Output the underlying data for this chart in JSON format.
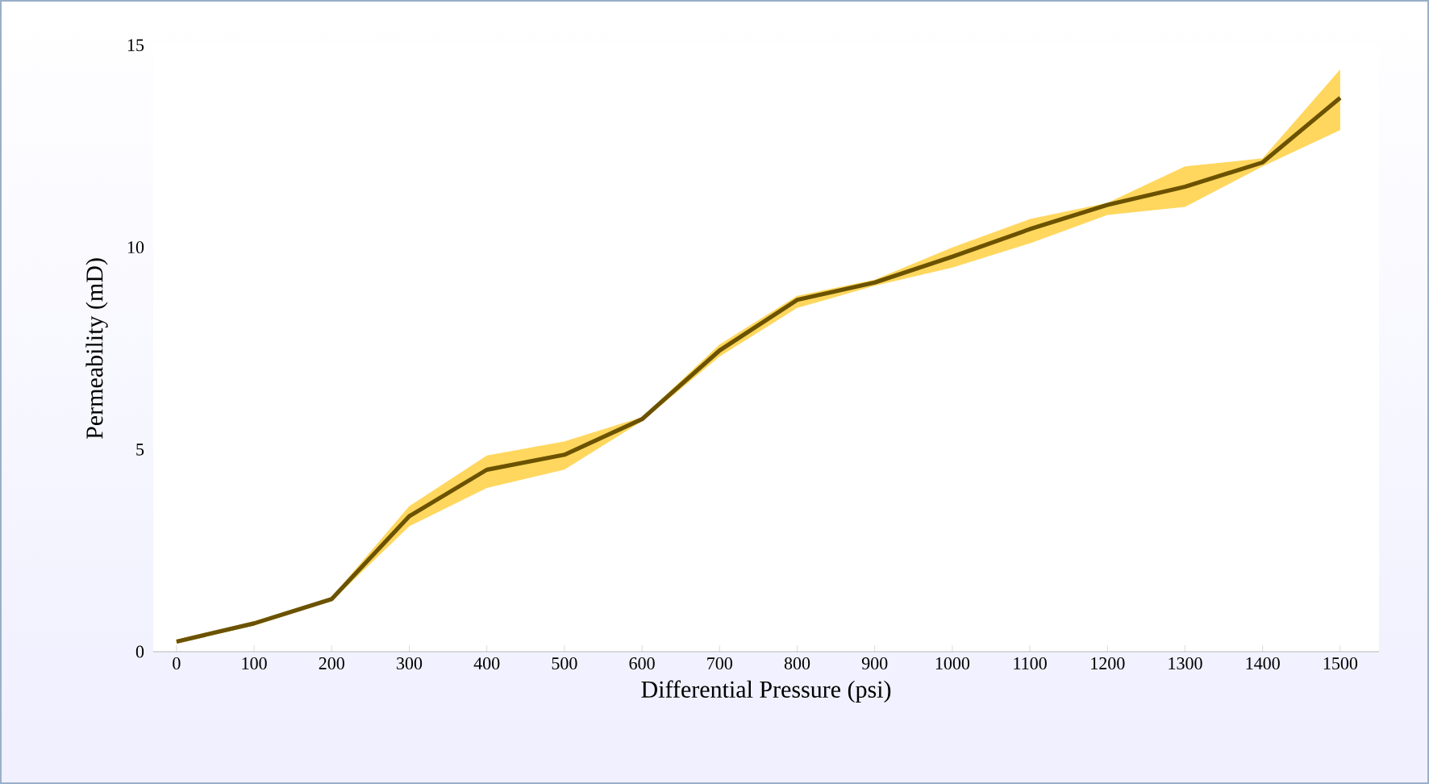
{
  "chart_data": {
    "type": "line",
    "xlabel": "Differential Pressure (psi)",
    "ylabel": "Permeability (mD)",
    "x": [
      0,
      100,
      200,
      300,
      400,
      500,
      600,
      700,
      800,
      900,
      1000,
      1100,
      1200,
      1300,
      1400,
      1500
    ],
    "xlim": [
      -30,
      1550
    ],
    "ylim": [
      0,
      15
    ],
    "xticks": [
      0,
      100,
      200,
      300,
      400,
      500,
      600,
      700,
      800,
      900,
      1000,
      1100,
      1200,
      1300,
      1400,
      1500
    ],
    "yticks": [
      0,
      5,
      10,
      15
    ],
    "series": [
      {
        "color": "#6b5200",
        "values": [
          0.25,
          0.7,
          1.3,
          3.35,
          4.5,
          4.87,
          5.75,
          7.45,
          8.7,
          9.13,
          9.77,
          10.45,
          11.05,
          11.5,
          12.1,
          13.7
        ],
        "lower": [
          0.2,
          0.65,
          1.25,
          3.1,
          4.05,
          4.5,
          5.7,
          7.3,
          8.5,
          9.05,
          9.5,
          10.1,
          10.8,
          11.0,
          12.0,
          12.9
        ],
        "upper": [
          0.3,
          0.75,
          1.35,
          3.6,
          4.85,
          5.2,
          5.8,
          7.6,
          8.8,
          9.2,
          10.0,
          10.7,
          11.1,
          12.0,
          12.2,
          14.4
        ]
      }
    ]
  }
}
